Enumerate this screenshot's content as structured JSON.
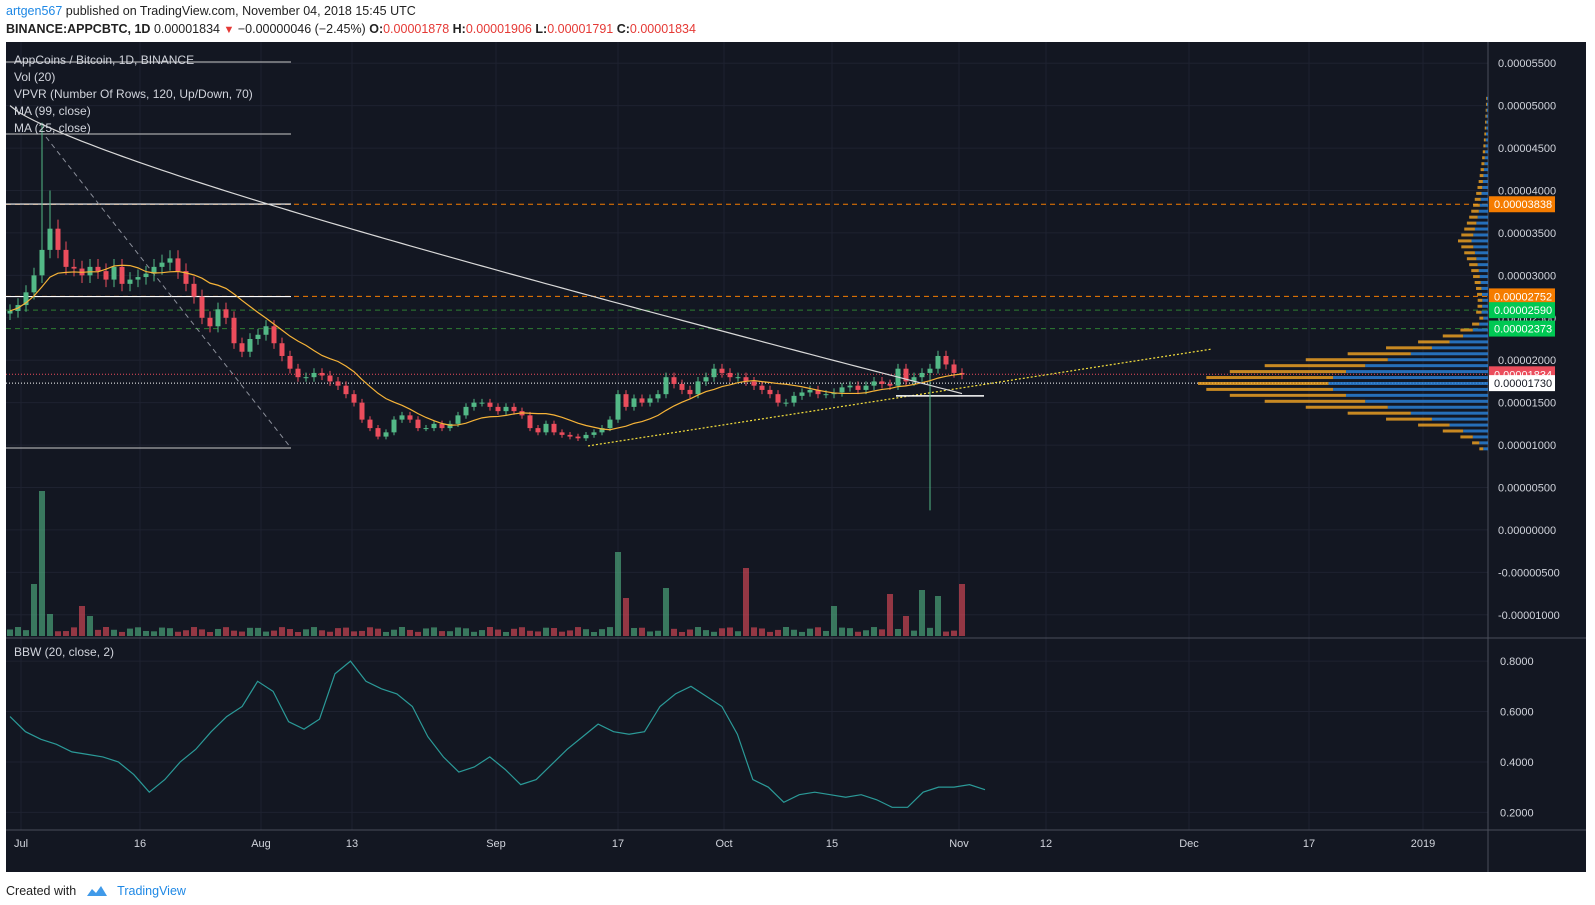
{
  "header": {
    "author": "artgen567",
    "published": "published on TradingView.com, November 04, 2018 15:45 UTC",
    "symbol": "BINANCE:APPCBTC, 1D",
    "last": "0.00001834",
    "arrow": "▼",
    "change": "−0.00000046 (−2.45%)",
    "o_label": "O:",
    "o_value": "0.00001878",
    "h_label": "H:",
    "h_value": "0.00001906",
    "l_label": "L:",
    "l_value": "0.00001791",
    "c_label": "C:",
    "c_value": "0.00001834"
  },
  "legend": {
    "title": "AppCoins / Bitcoin, 1D, BINANCE",
    "vol": "Vol (20)",
    "vpvr": "VPVR (Number Of Rows, 120, Up/Down, 70)",
    "ma99": "MA (99, close)",
    "ma25": "MA (25, close)",
    "bbw": "BBW (20, close, 2)"
  },
  "footer": {
    "created_with": "Created with",
    "brand": "TradingView"
  },
  "colors": {
    "background": "#131722",
    "up": "#53b987",
    "down": "#eb4d5c",
    "ma99": "#d9d9d9",
    "ma25": "#f6b338",
    "bbw": "#2b9a98",
    "orange_line": "#f57c00",
    "green_line": "#2e7d32",
    "vp_orange": "#f6a623",
    "vp_blue": "#2a7fd4"
  },
  "chart_data": [
    {
      "type": "candlestick",
      "title": "AppCoins / Bitcoin, 1D, BINANCE",
      "x_ticks": [
        "Jul",
        "16",
        "Aug",
        "13",
        "Sep",
        "17",
        "Oct",
        "15",
        "Nov",
        "12",
        "Dec",
        "17",
        "2019"
      ],
      "y_ticks": [
        "0.00005500",
        "0.00005000",
        "0.00004500",
        "0.00004000",
        "0.00003500",
        "0.00003000",
        "0.00002500",
        "0.00002000",
        "0.00001500",
        "0.00001000",
        "0.00000500",
        "0.00000000",
        "-0.00000500",
        "-0.00001000"
      ],
      "y_unit": "BTC",
      "price_labels": [
        {
          "value": "0.00003838",
          "color": "#f57c00"
        },
        {
          "value": "0.00002752",
          "color": "#f57c00"
        },
        {
          "value": "0.00002590",
          "color": "#00c853"
        },
        {
          "value": "0.00002373",
          "color": "#00c853"
        },
        {
          "value": "0.00001834",
          "color": "#eb4d5c"
        },
        {
          "value": "0.00001730",
          "color": "#ffffff"
        }
      ],
      "horizontal_levels": [
        {
          "price": 3.838e-05,
          "style": "dashed",
          "color": "#f57c00"
        },
        {
          "price": 2.752e-05,
          "style": "dashed",
          "color": "#f57c00"
        },
        {
          "price": 2.59e-05,
          "style": "dashed",
          "color": "#2e7d32"
        },
        {
          "price": 2.373e-05,
          "style": "dashed",
          "color": "#2e7d32"
        },
        {
          "price": 1.834e-05,
          "style": "dotted",
          "color": "#eb4d5c"
        },
        {
          "price": 1.73e-05,
          "style": "dotted",
          "color": "#ffffff"
        }
      ],
      "candles_close": [
        2.58e-05,
        2.65e-05,
        2.8e-05,
        3e-05,
        3.3e-05,
        3.55e-05,
        3.3e-05,
        3.1e-05,
        3.08e-05,
        3e-05,
        3.1e-05,
        3.05e-05,
        2.95e-05,
        3.1e-05,
        2.9e-05,
        2.95e-05,
        2.98e-05,
        3.02e-05,
        3.1e-05,
        3.15e-05,
        3.2e-05,
        3.05e-05,
        2.9e-05,
        2.75e-05,
        2.5e-05,
        2.4e-05,
        2.6e-05,
        2.5e-05,
        2.2e-05,
        2.1e-05,
        2.25e-05,
        2.3e-05,
        2.4e-05,
        2.2e-05,
        2.05e-05,
        1.9e-05,
        1.8e-05,
        1.8e-05,
        1.85e-05,
        1.82e-05,
        1.75e-05,
        1.7e-05,
        1.6e-05,
        1.5e-05,
        1.3e-05,
        1.2e-05,
        1.1e-05,
        1.15e-05,
        1.3e-05,
        1.35e-05,
        1.3e-05,
        1.2e-05,
        1.2e-05,
        1.25e-05,
        1.2e-05,
        1.25e-05,
        1.35e-05,
        1.45e-05,
        1.5e-05,
        1.5e-05,
        1.45e-05,
        1.4e-05,
        1.45e-05,
        1.4e-05,
        1.35e-05,
        1.2e-05,
        1.15e-05,
        1.25e-05,
        1.15e-05,
        1.12e-05,
        1.1e-05,
        1.08e-05,
        1.12e-05,
        1.15e-05,
        1.2e-05,
        1.3e-05,
        1.6e-05,
        1.45e-05,
        1.55e-05,
        1.5e-05,
        1.55e-05,
        1.6e-05,
        1.8e-05,
        1.72e-05,
        1.65e-05,
        1.6e-05,
        1.75e-05,
        1.8e-05,
        1.9e-05,
        1.85e-05,
        1.8e-05,
        1.8e-05,
        1.75e-05,
        1.7e-05,
        1.65e-05,
        1.6e-05,
        1.5e-05,
        1.5e-05,
        1.58e-05,
        1.62e-05,
        1.65e-05,
        1.6e-05,
        1.6e-05,
        1.62e-05,
        1.68e-05,
        1.7e-05,
        1.65e-05,
        1.7e-05,
        1.75e-05,
        1.72e-05,
        1.7e-05,
        1.9e-05,
        1.75e-05,
        1.8e-05,
        1.85e-05,
        1.9e-05,
        2.05e-05,
        1.95e-05,
        1.85e-05,
        1.83e-05
      ],
      "volume_y_ticks": [
        "0.8000",
        "0.6000",
        "0.4000",
        "0.2000"
      ],
      "bbw_values": [
        0.58,
        0.52,
        0.49,
        0.47,
        0.44,
        0.43,
        0.42,
        0.4,
        0.35,
        0.28,
        0.33,
        0.4,
        0.45,
        0.52,
        0.58,
        0.62,
        0.72,
        0.68,
        0.56,
        0.53,
        0.57,
        0.75,
        0.8,
        0.72,
        0.69,
        0.67,
        0.62,
        0.5,
        0.42,
        0.36,
        0.38,
        0.42,
        0.37,
        0.31,
        0.33,
        0.39,
        0.45,
        0.5,
        0.55,
        0.52,
        0.51,
        0.52,
        0.62,
        0.67,
        0.7,
        0.66,
        0.62,
        0.51,
        0.33,
        0.3,
        0.24,
        0.27,
        0.28,
        0.27,
        0.26,
        0.27,
        0.25,
        0.22,
        0.22,
        0.28,
        0.3,
        0.3,
        0.31,
        0.29
      ]
    }
  ]
}
